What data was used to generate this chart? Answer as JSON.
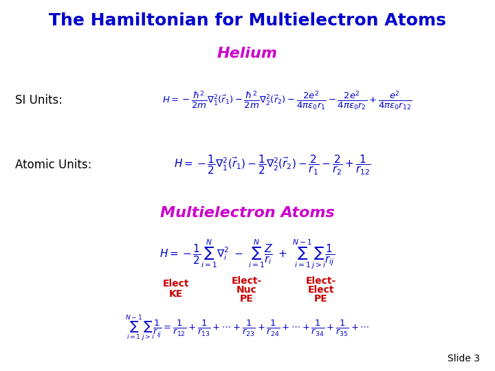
{
  "title": "The Hamiltonian for Multielectron Atoms",
  "title_color": "#0000CC",
  "title_fontsize": 18,
  "helium_label": "Helium",
  "helium_color": "#CC00CC",
  "helium_fontsize": 16,
  "si_label": "SI Units:",
  "si_label_color": "#000000",
  "si_formula_color": "#0000CC",
  "atomic_label": "Atomic Units:",
  "atomic_label_color": "#000000",
  "atomic_formula_color": "#0000CC",
  "multielectron_label": "Multielectron Atoms",
  "multielectron_color": "#CC00CC",
  "multielectron_fontsize": 16,
  "multi_formula_color": "#0000CC",
  "label_color": "#CC0000",
  "sum_formula_color": "#0000CC",
  "slide_label": "Slide 3",
  "slide_label_color": "#000000",
  "background_color": "#FFFFFF"
}
